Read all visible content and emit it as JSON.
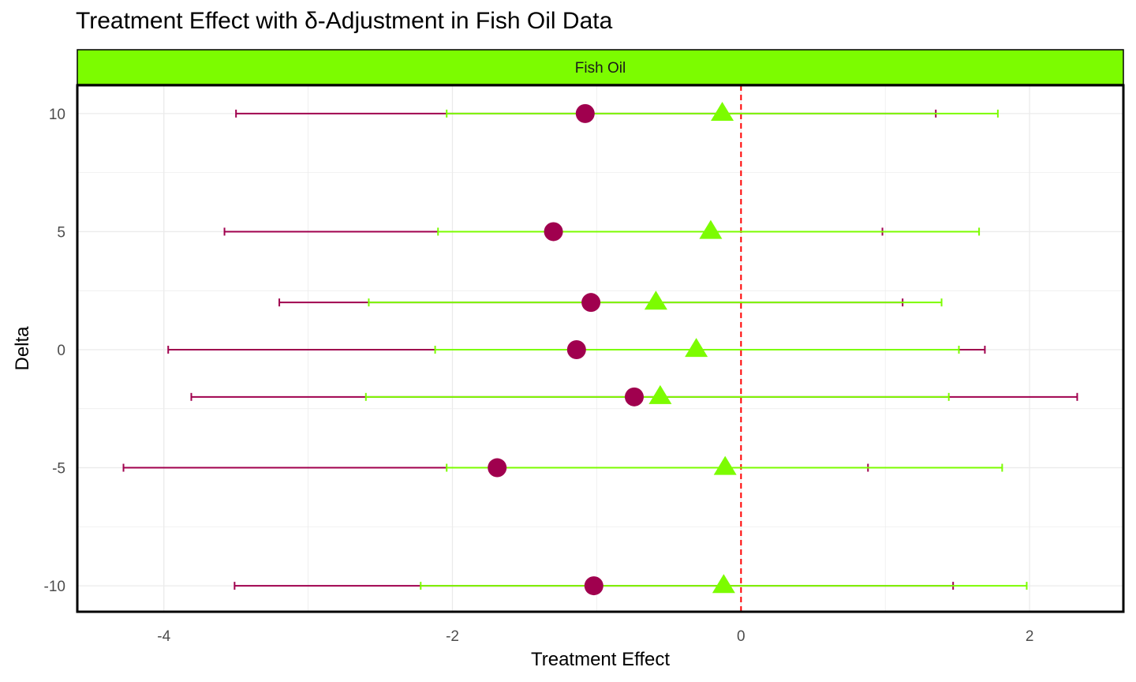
{
  "chart_data": {
    "type": "scatter",
    "title": "Treatment Effect with δ-Adjustment in Fish Oil Data",
    "facet_label": "Fish Oil",
    "xlabel": "Treatment Effect",
    "ylabel": "Delta",
    "xlim": [
      -4.6,
      2.65
    ],
    "ylim": [
      -11.1,
      11.2
    ],
    "x_ticks": [
      -4,
      -2,
      0,
      2
    ],
    "x_tick_labels": [
      "-4",
      "-2",
      "0",
      "2"
    ],
    "y_ticks": [
      -10,
      -5,
      0,
      5,
      10
    ],
    "y_tick_labels": [
      "-10",
      "-5",
      "0",
      "5",
      "10"
    ],
    "reference_line_x": 0,
    "grid": true,
    "colors": {
      "series_circle": "#A0004E",
      "series_triangle": "#7CFC00",
      "reference_line": "#FF0000",
      "strip_fill": "#7CFC00"
    },
    "series": [
      {
        "marker": "circle",
        "color": "#A0004E",
        "points": [
          {
            "delta": 10,
            "estimate": -1.08,
            "lower": -3.5,
            "upper": 1.35
          },
          {
            "delta": 5,
            "estimate": -1.3,
            "lower": -3.58,
            "upper": 0.98
          },
          {
            "delta": 2,
            "estimate": -1.04,
            "lower": -3.2,
            "upper": 1.12
          },
          {
            "delta": 0,
            "estimate": -1.14,
            "lower": -3.97,
            "upper": 1.69
          },
          {
            "delta": -2,
            "estimate": -0.74,
            "lower": -3.81,
            "upper": 2.33
          },
          {
            "delta": -5,
            "estimate": -1.69,
            "lower": -4.28,
            "upper": 0.88
          },
          {
            "delta": -10,
            "estimate": -1.02,
            "lower": -3.51,
            "upper": 1.47
          }
        ]
      },
      {
        "marker": "triangle",
        "color": "#7CFC00",
        "points": [
          {
            "delta": 10,
            "estimate": -0.13,
            "lower": -2.04,
            "upper": 1.78
          },
          {
            "delta": 5,
            "estimate": -0.21,
            "lower": -2.1,
            "upper": 1.65
          },
          {
            "delta": 2,
            "estimate": -0.59,
            "lower": -2.58,
            "upper": 1.39
          },
          {
            "delta": 0,
            "estimate": -0.31,
            "lower": -2.12,
            "upper": 1.51
          },
          {
            "delta": -2,
            "estimate": -0.56,
            "lower": -2.6,
            "upper": 1.44
          },
          {
            "delta": -5,
            "estimate": -0.11,
            "lower": -2.04,
            "upper": 1.81
          },
          {
            "delta": -10,
            "estimate": -0.12,
            "lower": -2.22,
            "upper": 1.98
          }
        ]
      }
    ]
  }
}
